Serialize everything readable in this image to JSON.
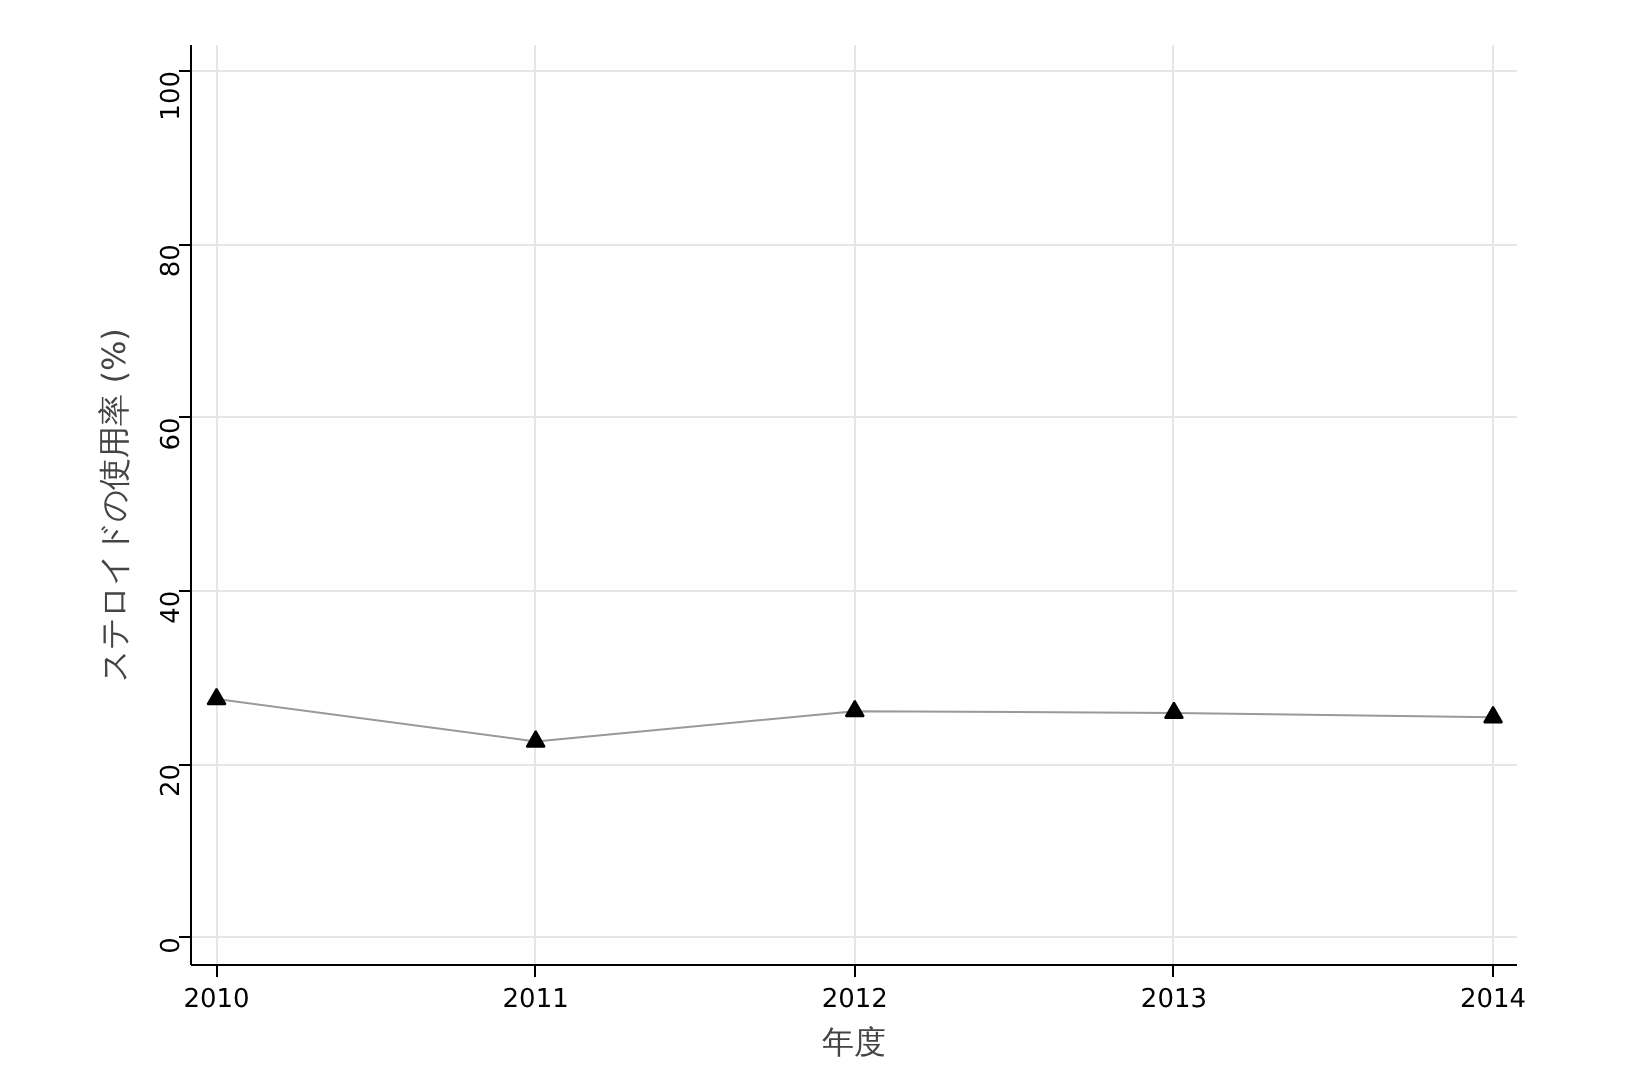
{
  "chart_data": {
    "type": "line",
    "xlabel": "年度",
    "ylabel": "ステロイドの使用率 (%)",
    "x": [
      2010,
      2011,
      2012,
      2013,
      2014
    ],
    "series": [
      {
        "color": "#999999",
        "values": [
          27.5,
          22.6,
          26.1,
          25.9,
          25.4
        ]
      }
    ],
    "marker": "triangle",
    "line_style": "solid",
    "grid": true,
    "xlim": [
      2009.92,
      2014.075
    ],
    "xticks": [
      2010,
      2011,
      2012,
      2013,
      2014
    ],
    "ylim": [
      -3.2,
      103
    ],
    "yticks": [
      0,
      20,
      40,
      60,
      80,
      100
    ]
  }
}
